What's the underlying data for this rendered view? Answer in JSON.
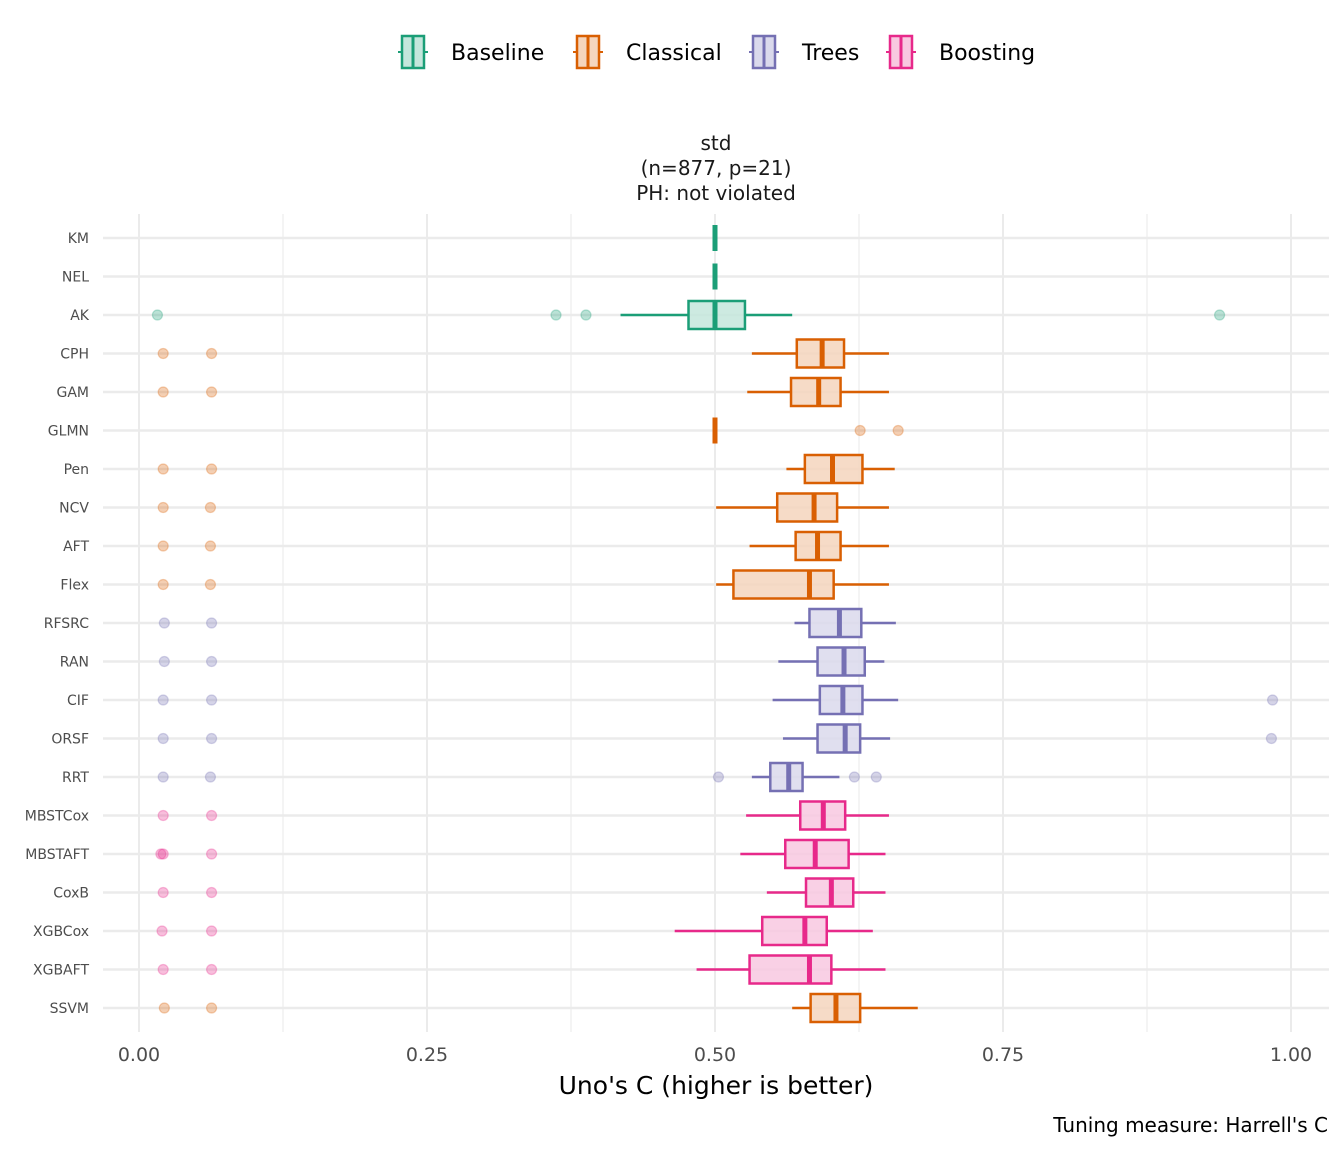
{
  "chart_data": {
    "type": "boxplot",
    "orientation": "horizontal",
    "facet_title": [
      "std",
      "(n=877, p=21)",
      "PH: not violated"
    ],
    "xlabel": "Uno's C (higher is better)",
    "ylabel": "",
    "caption": "Tuning measure: Harrell's C",
    "xlim": [
      0,
      1
    ],
    "x_ticks": [
      0,
      0.25,
      0.5,
      0.75,
      1.0
    ],
    "x_tick_labels": [
      "0.00",
      "0.25",
      "0.50",
      "0.75",
      "1.00"
    ],
    "grid": true,
    "legend": {
      "position": "top",
      "entries": [
        {
          "name": "Baseline",
          "color": "#1b9e77",
          "fill": "#c4e6dc"
        },
        {
          "name": "Classical",
          "color": "#d95f02",
          "fill": "#f5d5bd"
        },
        {
          "name": "Trees",
          "color": "#7570b3",
          "fill": "#dad9ec"
        },
        {
          "name": "Boosting",
          "color": "#e7298a",
          "fill": "#f8c8e0"
        }
      ]
    },
    "series": [
      {
        "name": "KM",
        "group": "Baseline",
        "whisker_low": 0.5,
        "q1": 0.5,
        "median": 0.5,
        "q3": 0.5,
        "whisker_high": 0.5,
        "outliers": []
      },
      {
        "name": "NEL",
        "group": "Baseline",
        "whisker_low": 0.5,
        "q1": 0.5,
        "median": 0.5,
        "q3": 0.5,
        "whisker_high": 0.5,
        "outliers": []
      },
      {
        "name": "AK",
        "group": "Baseline",
        "whisker_low": 0.418,
        "q1": 0.477,
        "median": 0.5,
        "q3": 0.526,
        "whisker_high": 0.567,
        "outliers": [
          0.016,
          0.362,
          0.388,
          0.938
        ]
      },
      {
        "name": "CPH",
        "group": "Classical",
        "whisker_low": 0.532,
        "q1": 0.571,
        "median": 0.593,
        "q3": 0.612,
        "whisker_high": 0.651,
        "outliers": [
          0.021,
          0.063
        ]
      },
      {
        "name": "GAM",
        "group": "Classical",
        "whisker_low": 0.528,
        "q1": 0.566,
        "median": 0.59,
        "q3": 0.609,
        "whisker_high": 0.651,
        "outliers": [
          0.021,
          0.063
        ]
      },
      {
        "name": "GLMN",
        "group": "Classical",
        "whisker_low": 0.5,
        "q1": 0.5,
        "median": 0.5,
        "q3": 0.5,
        "whisker_high": 0.5,
        "outliers": [
          0.626,
          0.659
        ]
      },
      {
        "name": "Pen",
        "group": "Classical",
        "whisker_low": 0.562,
        "q1": 0.578,
        "median": 0.602,
        "q3": 0.628,
        "whisker_high": 0.656,
        "outliers": [
          0.021,
          0.063
        ]
      },
      {
        "name": "NCV",
        "group": "Classical",
        "whisker_low": 0.501,
        "q1": 0.554,
        "median": 0.586,
        "q3": 0.606,
        "whisker_high": 0.651,
        "outliers": [
          0.021,
          0.062
        ]
      },
      {
        "name": "AFT",
        "group": "Classical",
        "whisker_low": 0.53,
        "q1": 0.57,
        "median": 0.589,
        "q3": 0.609,
        "whisker_high": 0.651,
        "outliers": [
          0.021,
          0.062
        ]
      },
      {
        "name": "Flex",
        "group": "Classical",
        "whisker_low": 0.501,
        "q1": 0.516,
        "median": 0.582,
        "q3": 0.603,
        "whisker_high": 0.651,
        "outliers": [
          0.021,
          0.062
        ]
      },
      {
        "name": "RFSRC",
        "group": "Trees",
        "whisker_low": 0.569,
        "q1": 0.582,
        "median": 0.608,
        "q3": 0.627,
        "whisker_high": 0.657,
        "outliers": [
          0.022,
          0.063
        ]
      },
      {
        "name": "RAN",
        "group": "Trees",
        "whisker_low": 0.555,
        "q1": 0.589,
        "median": 0.612,
        "q3": 0.63,
        "whisker_high": 0.647,
        "outliers": [
          0.022,
          0.063
        ]
      },
      {
        "name": "CIF",
        "group": "Trees",
        "whisker_low": 0.55,
        "q1": 0.591,
        "median": 0.611,
        "q3": 0.628,
        "whisker_high": 0.659,
        "outliers": [
          0.021,
          0.063,
          0.984
        ]
      },
      {
        "name": "ORSF",
        "group": "Trees",
        "whisker_low": 0.559,
        "q1": 0.589,
        "median": 0.613,
        "q3": 0.626,
        "whisker_high": 0.652,
        "outliers": [
          0.021,
          0.063,
          0.983
        ]
      },
      {
        "name": "RRT",
        "group": "Trees",
        "whisker_low": 0.532,
        "q1": 0.548,
        "median": 0.564,
        "q3": 0.576,
        "whisker_high": 0.608,
        "outliers": [
          0.021,
          0.062,
          0.503,
          0.621,
          0.64
        ]
      },
      {
        "name": "MBSTCox",
        "group": "Boosting",
        "whisker_low": 0.527,
        "q1": 0.574,
        "median": 0.594,
        "q3": 0.613,
        "whisker_high": 0.651,
        "outliers": [
          0.021,
          0.063
        ]
      },
      {
        "name": "MBSTAFT",
        "group": "Boosting",
        "whisker_low": 0.522,
        "q1": 0.561,
        "median": 0.587,
        "q3": 0.616,
        "whisker_high": 0.648,
        "outliers": [
          0.019,
          0.021,
          0.063
        ]
      },
      {
        "name": "CoxB",
        "group": "Boosting",
        "whisker_low": 0.545,
        "q1": 0.579,
        "median": 0.601,
        "q3": 0.62,
        "whisker_high": 0.648,
        "outliers": [
          0.021,
          0.063
        ]
      },
      {
        "name": "XGBCox",
        "group": "Boosting",
        "whisker_low": 0.465,
        "q1": 0.541,
        "median": 0.578,
        "q3": 0.597,
        "whisker_high": 0.637,
        "outliers": [
          0.02,
          0.063
        ]
      },
      {
        "name": "XGBAFT",
        "group": "Boosting",
        "whisker_low": 0.484,
        "q1": 0.53,
        "median": 0.582,
        "q3": 0.601,
        "whisker_high": 0.648,
        "outliers": [
          0.021,
          0.063
        ]
      },
      {
        "name": "SSVM",
        "group": "Classical",
        "whisker_low": 0.567,
        "q1": 0.583,
        "median": 0.605,
        "q3": 0.626,
        "whisker_high": 0.676,
        "outliers": [
          0.022,
          0.063
        ]
      }
    ]
  }
}
